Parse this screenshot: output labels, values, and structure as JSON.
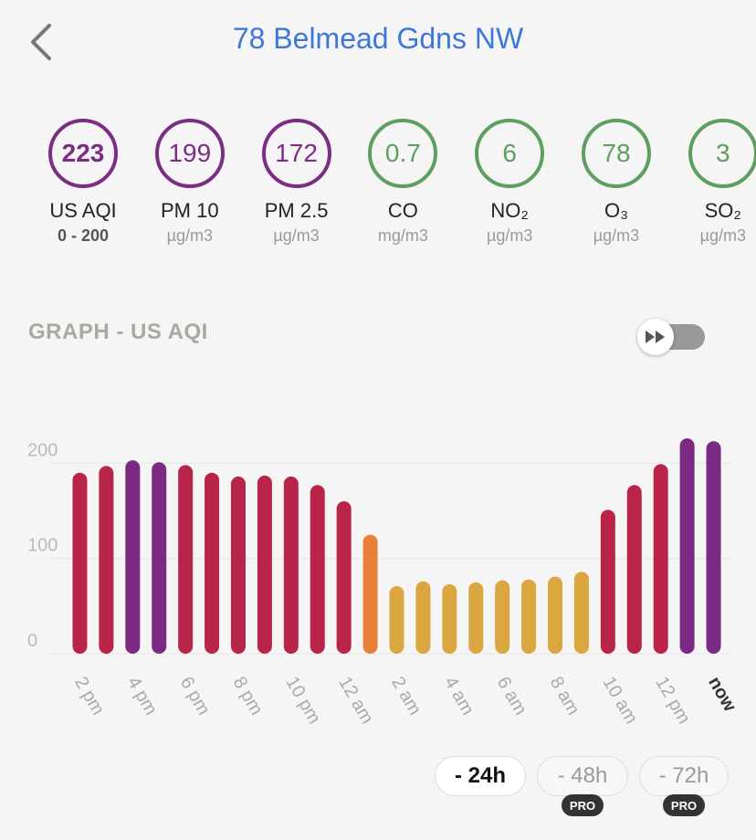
{
  "header": {
    "title": "78 Belmead Gdns NW"
  },
  "pollutants": [
    {
      "value": "223",
      "name": "US AQI",
      "note": "0 - 200",
      "color": "#7b2d84",
      "bold": true
    },
    {
      "value": "199",
      "name": "PM 10",
      "unit": "µg/m3",
      "color": "#7b2d84"
    },
    {
      "value": "172",
      "name": "PM 2.5",
      "unit": "µg/m3",
      "color": "#7b2d84"
    },
    {
      "value": "0.7",
      "name": "CO",
      "unit": "mg/m3",
      "color": "#5e9e5e"
    },
    {
      "value": "6",
      "name": "NO₂",
      "unit": "µg/m3",
      "color": "#5e9e5e"
    },
    {
      "value": "78",
      "name": "O₃",
      "unit": "µg/m3",
      "color": "#5e9e5e"
    },
    {
      "value": "3",
      "name": "SO₂",
      "unit": "µg/m3",
      "color": "#5e9e5e"
    }
  ],
  "graph": {
    "title": "GRAPH - US AQI"
  },
  "chart_data": {
    "type": "bar",
    "categories": [
      "2 pm",
      null,
      "4 pm",
      null,
      "6 pm",
      null,
      "8 pm",
      null,
      "10 pm",
      null,
      "12 am",
      null,
      "2 am",
      null,
      "4 am",
      null,
      "6 am",
      null,
      "8 am",
      null,
      "10 am",
      null,
      "12 pm",
      null,
      "now"
    ],
    "values": [
      190,
      197,
      203,
      201,
      198,
      190,
      186,
      187,
      186,
      177,
      160,
      125,
      71,
      76,
      73,
      75,
      77,
      78,
      81,
      86,
      151,
      177,
      199,
      226,
      223
    ],
    "colors": [
      "#b82549",
      "#b82549",
      "#7a2a82",
      "#7a2a82",
      "#b82549",
      "#b82549",
      "#b82549",
      "#b82549",
      "#b82549",
      "#b82549",
      "#b82549",
      "#e8803a",
      "#d9a640",
      "#d9a640",
      "#d9a640",
      "#d9a640",
      "#d9a640",
      "#d9a640",
      "#d9a640",
      "#d9a640",
      "#b82549",
      "#b82549",
      "#b82549",
      "#7a2a82",
      "#7a2a82"
    ],
    "ylim": [
      0,
      230
    ],
    "yticks": [
      0,
      100,
      200
    ],
    "grid": true
  },
  "ranges": [
    {
      "label": "- 24h",
      "selected": true
    },
    {
      "label": "- 48h",
      "badge": "PRO"
    },
    {
      "label": "- 72h",
      "badge": "PRO"
    }
  ]
}
